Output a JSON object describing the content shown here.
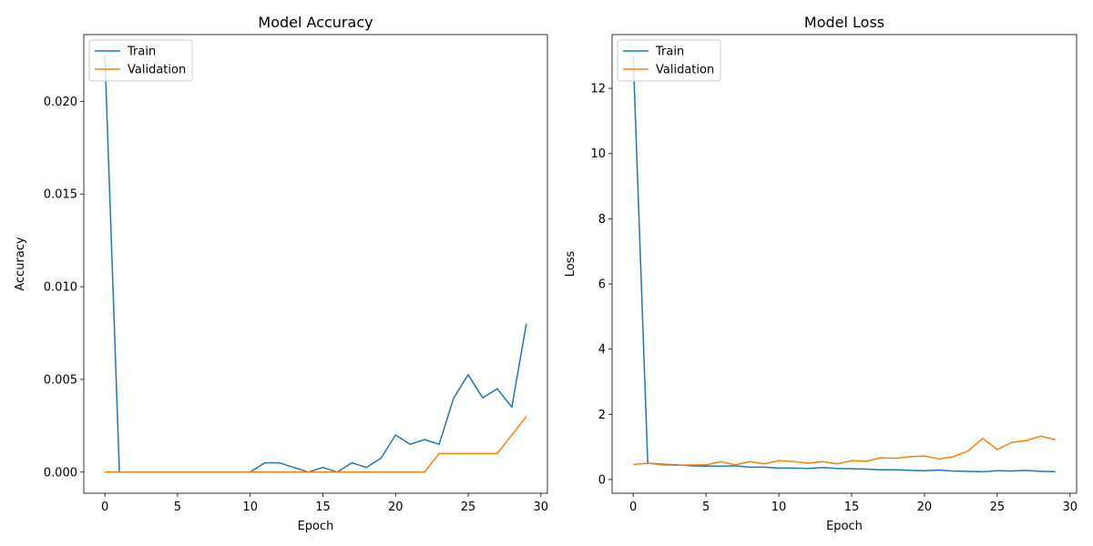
{
  "chart_data": [
    {
      "type": "line",
      "title": "Model Accuracy",
      "xlabel": "Epoch",
      "ylabel": "Accuracy",
      "xlim": [
        -1.45,
        30.45
      ],
      "ylim": [
        -0.00114,
        0.0236
      ],
      "xticks": [
        0,
        5,
        10,
        15,
        20,
        25,
        30
      ],
      "xtick_labels": [
        "0",
        "5",
        "10",
        "15",
        "20",
        "25",
        "30"
      ],
      "yticks": [
        0.0,
        0.005,
        0.01,
        0.015,
        0.02
      ],
      "ytick_labels": [
        "0.000",
        "0.005",
        "0.010",
        "0.015",
        "0.020"
      ],
      "legend_position": "top-left",
      "grid": false,
      "x": [
        0,
        1,
        2,
        3,
        4,
        5,
        6,
        7,
        8,
        9,
        10,
        11,
        12,
        13,
        14,
        15,
        16,
        17,
        18,
        19,
        20,
        21,
        22,
        23,
        24,
        25,
        26,
        27,
        28,
        29
      ],
      "series": [
        {
          "name": "Train",
          "color": "#1f77b4",
          "values": [
            0.0225,
            0,
            0,
            0,
            0,
            0,
            0,
            0,
            0,
            0,
            0,
            0.0005,
            0.0005,
            0.00025,
            0,
            0.00025,
            0,
            0.0005,
            0.00025,
            0.00075,
            0.002,
            0.0015,
            0.00175,
            0.0015,
            0.004,
            0.00525,
            0.004,
            0.0045,
            0.0035,
            0.008
          ]
        },
        {
          "name": "Validation",
          "color": "#ff7f0e",
          "values": [
            0,
            0,
            0,
            0,
            0,
            0,
            0,
            0,
            0,
            0,
            0,
            0,
            0,
            0,
            0,
            0,
            0,
            0,
            0,
            0,
            0,
            0,
            0,
            0.001,
            0.001,
            0.001,
            0.001,
            0.001,
            0.002,
            0.003
          ]
        }
      ]
    },
    {
      "type": "line",
      "title": "Model Loss",
      "xlabel": "Epoch",
      "ylabel": "Loss",
      "xlim": [
        -1.45,
        30.45
      ],
      "ylim": [
        -0.42,
        13.65
      ],
      "xticks": [
        0,
        5,
        10,
        15,
        20,
        25,
        30
      ],
      "xtick_labels": [
        "0",
        "5",
        "10",
        "15",
        "20",
        "25",
        "30"
      ],
      "yticks": [
        0,
        2,
        4,
        6,
        8,
        10,
        12
      ],
      "ytick_labels": [
        "0",
        "2",
        "4",
        "6",
        "8",
        "10",
        "12"
      ],
      "legend_position": "top-left",
      "grid": false,
      "x": [
        0,
        1,
        2,
        3,
        4,
        5,
        6,
        7,
        8,
        9,
        10,
        11,
        12,
        13,
        14,
        15,
        16,
        17,
        18,
        19,
        20,
        21,
        22,
        23,
        24,
        25,
        26,
        27,
        28,
        29
      ],
      "series": [
        {
          "name": "Train",
          "color": "#1f77b4",
          "values": [
            13.0,
            0.5,
            0.47,
            0.45,
            0.42,
            0.41,
            0.41,
            0.42,
            0.38,
            0.38,
            0.35,
            0.35,
            0.34,
            0.37,
            0.34,
            0.33,
            0.32,
            0.3,
            0.3,
            0.28,
            0.27,
            0.29,
            0.26,
            0.25,
            0.24,
            0.27,
            0.26,
            0.28,
            0.25,
            0.24
          ]
        },
        {
          "name": "Validation",
          "color": "#ff7f0e",
          "values": [
            0.46,
            0.5,
            0.45,
            0.44,
            0.45,
            0.45,
            0.55,
            0.45,
            0.55,
            0.48,
            0.58,
            0.55,
            0.5,
            0.55,
            0.48,
            0.58,
            0.56,
            0.67,
            0.65,
            0.7,
            0.72,
            0.63,
            0.7,
            0.88,
            1.26,
            0.92,
            1.14,
            1.2,
            1.33,
            1.22
          ]
        }
      ]
    }
  ]
}
